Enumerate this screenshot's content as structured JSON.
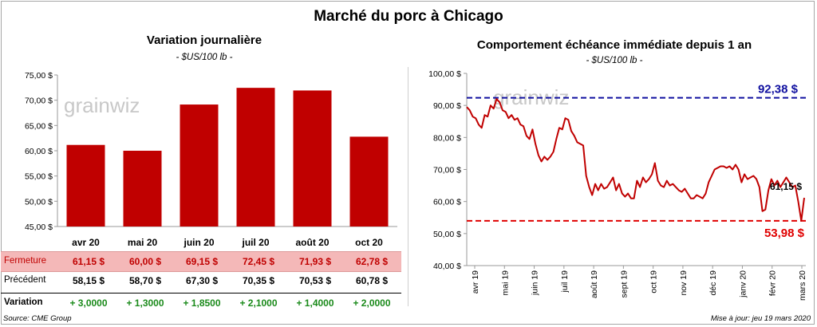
{
  "title": "Marché du porc à Chicago",
  "watermark": "grainwiz",
  "left": {
    "title": "Variation  journalière",
    "unit": "- $US/100 lb -",
    "y_ticks": [
      "75,00 $",
      "70,00 $",
      "65,00 $",
      "60,00 $",
      "55,00 $",
      "50,00 $",
      "45,00 $"
    ],
    "table": {
      "close_label": "Fermeture",
      "prev_label": "Précédent",
      "var_label": "Variation",
      "close": [
        "61,15  $",
        "60,00  $",
        "69,15  $",
        "72,45  $",
        "71,93  $",
        "62,78  $"
      ],
      "prev": [
        "58,15  $",
        "58,70  $",
        "67,30  $",
        "70,35  $",
        "70,53  $",
        "60,78  $"
      ],
      "var": [
        "+ 3,0000",
        "+ 1,3000",
        "+ 1,8500",
        "+ 2,1000",
        "+ 1,4000",
        "+ 2,0000"
      ]
    }
  },
  "right": {
    "title": "Comportement  échéance immédiate depuis 1 an",
    "unit": "- $US/100 lb -",
    "y_ticks": [
      "100,00 $",
      "90,00 $",
      "80,00 $",
      "70,00 $",
      "60,00 $",
      "50,00 $",
      "40,00 $"
    ],
    "x_ticks": [
      "avr 19",
      "mai 19",
      "juin 19",
      "juil 19",
      "août 19",
      "sept 19",
      "oct 19",
      "nov 19",
      "déc 19",
      "janv 20",
      "févr 20",
      "mars 20"
    ],
    "high_label": "92,38 $",
    "low_label": "53,98 $",
    "last_label": "61,15 $"
  },
  "chart_data": [
    {
      "type": "bar",
      "title": "Variation  journalière",
      "ylabel": "$US/100 lb",
      "categories": [
        "avr 20",
        "mai 20",
        "juin 20",
        "juil 20",
        "août 20",
        "oct 20"
      ],
      "values": [
        61.15,
        60.0,
        69.15,
        72.45,
        71.93,
        62.78
      ],
      "ylim": [
        45,
        75
      ],
      "color": "#c00000"
    },
    {
      "type": "line",
      "title": "Comportement  échéance immédiate depuis 1 an",
      "ylabel": "$US/100 lb",
      "ylim": [
        40,
        100
      ],
      "x_ticks": [
        "avr 19",
        "mai 19",
        "juin 19",
        "juil 19",
        "août 19",
        "sept 19",
        "oct 19",
        "nov 19",
        "déc 19",
        "janv 20",
        "févr 20",
        "mars 20"
      ],
      "series_color": "#c00000",
      "values": [
        89.5,
        88.5,
        86.5,
        86,
        84,
        83,
        87,
        86.5,
        90,
        89,
        92,
        91,
        88.5,
        88,
        86,
        87,
        85.5,
        86,
        84,
        83.5,
        80.5,
        79.5,
        82.5,
        78,
        74.5,
        72.5,
        74,
        73,
        74,
        75.5,
        79.5,
        83,
        82.5,
        86,
        85.5,
        82,
        80.5,
        78.5,
        78,
        77.5,
        68,
        64.5,
        62,
        65.5,
        63.5,
        65.5,
        64,
        64.5,
        66,
        67.5,
        63.5,
        65.5,
        62.5,
        61.5,
        62.5,
        61,
        61,
        66.5,
        64.5,
        67.5,
        66,
        67,
        68.5,
        72,
        66.5,
        65,
        64.5,
        66.5,
        65,
        65.5,
        64.5,
        63.5,
        63,
        64,
        62.5,
        61,
        61,
        62,
        61.5,
        61,
        62.5,
        66,
        68,
        70,
        70.5,
        71,
        71,
        70.5,
        71,
        70,
        71.5,
        70,
        66,
        68.5,
        67,
        67.5,
        68,
        67,
        64.5,
        57,
        57.5,
        63.5,
        67,
        65,
        66.5,
        64.5,
        66,
        67.5,
        66,
        64.5,
        65,
        60,
        54,
        61.15
      ],
      "reference_lines": [
        {
          "name": "high",
          "value": 92.38,
          "color": "#1010a0"
        },
        {
          "name": "low",
          "value": 53.98,
          "color": "#e00000"
        }
      ]
    }
  ],
  "footer": {
    "source": "Source: CME Group",
    "updated": "Mise à jour: jeu 19 mars 2020"
  }
}
